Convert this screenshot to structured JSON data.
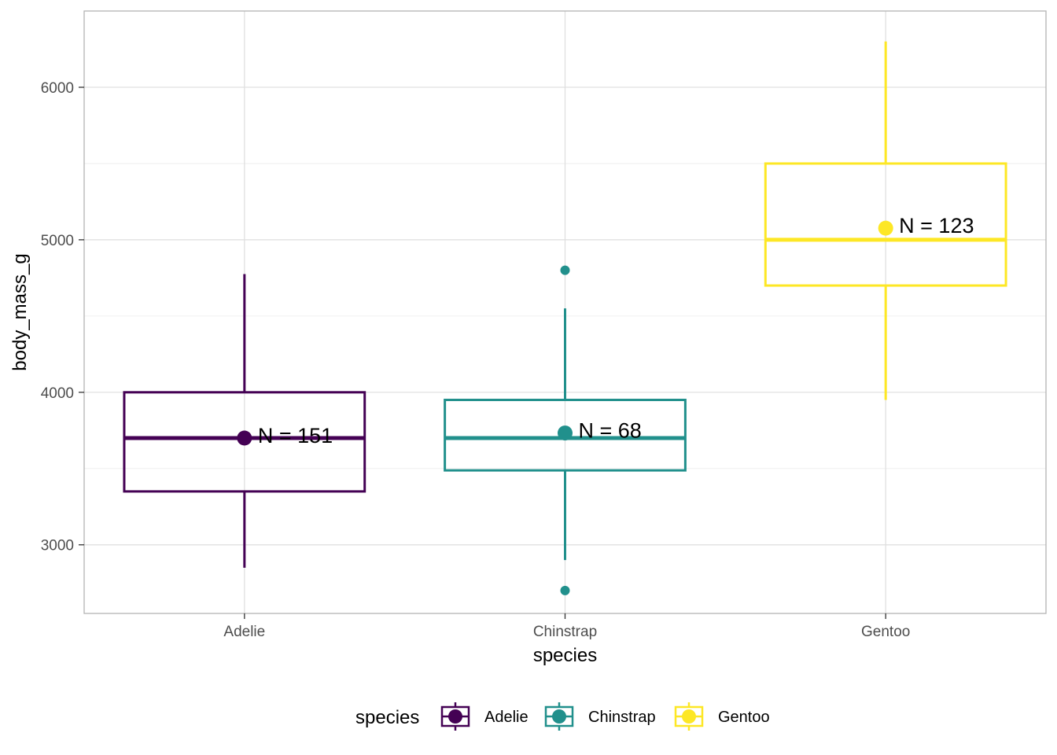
{
  "chart_data": {
    "type": "boxplot",
    "xlabel": "species",
    "ylabel": "body_mass_g",
    "ylim": [
      2550,
      6500
    ],
    "yticks": [
      3000,
      4000,
      5000,
      6000
    ],
    "grid": true,
    "legend": {
      "title": "species",
      "position": "bottom"
    },
    "categories": [
      "Adelie",
      "Chinstrap",
      "Gentoo"
    ],
    "series": [
      {
        "name": "Adelie",
        "color": "#440154",
        "lower_whisker": 2850,
        "q1": 3350,
        "median": 3700,
        "q3": 4000,
        "upper_whisker": 4775,
        "mean": 3700,
        "outliers": [],
        "n_label": "N = 151"
      },
      {
        "name": "Chinstrap",
        "color": "#21908C",
        "lower_whisker": 2900,
        "q1": 3488,
        "median": 3700,
        "q3": 3950,
        "upper_whisker": 4550,
        "mean": 3733,
        "outliers": [
          4800,
          2700
        ],
        "n_label": "N = 68"
      },
      {
        "name": "Gentoo",
        "color": "#FDE725",
        "lower_whisker": 3950,
        "q1": 4700,
        "median": 5000,
        "q3": 5500,
        "upper_whisker": 6300,
        "mean": 5076,
        "outliers": [],
        "n_label": "N = 123"
      }
    ]
  }
}
